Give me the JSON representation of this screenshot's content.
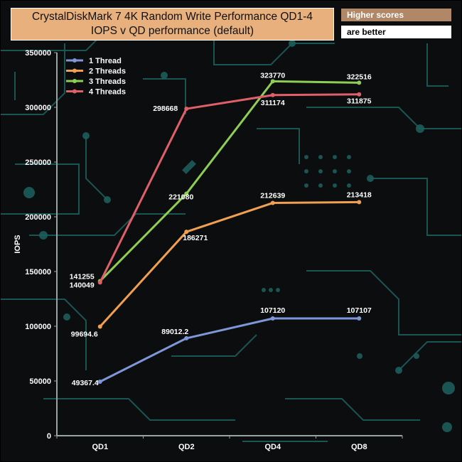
{
  "title_lines": [
    "CrystalDiskMark 7 4K Random Write Performance QD1-4",
    "IOPS v QD performance (default)"
  ],
  "badge": [
    "Higher scores",
    "are better"
  ],
  "colors": {
    "background": "#0b0d0e",
    "title_bg": "#e7b07c",
    "badge_bg": "#b08868",
    "circuit": "#1d5d5b"
  },
  "chart_data": {
    "type": "line",
    "title": "CrystalDiskMark 7 4K Random Write Performance QD1-4 IOPS v QD performance (default)",
    "xlabel": "",
    "ylabel": "IOPS",
    "categories": [
      "QD1",
      "QD2",
      "QD4",
      "QD8"
    ],
    "ylim": [
      0,
      350000
    ],
    "yticks": [
      "0",
      "50000",
      "100000",
      "150000",
      "200000",
      "250000",
      "300000",
      "350000"
    ],
    "grid": false,
    "legend_position": "top-left",
    "series": [
      {
        "name": "1 Thread",
        "color": "#7f97d8",
        "values": [
          49367.4,
          89012.2,
          107120,
          107107
        ],
        "labels": [
          "49367.4",
          "89012.2",
          "107120",
          "107107"
        ]
      },
      {
        "name": "2 Threads",
        "color": "#f0a050",
        "values": [
          99694.6,
          186271,
          212639,
          213418
        ],
        "labels": [
          "99694.6",
          "186271",
          "212639",
          "213418"
        ]
      },
      {
        "name": "3 Threads",
        "color": "#8fce55",
        "values": [
          141255,
          221080,
          323770,
          322516
        ],
        "labels": [
          "141255",
          "221080",
          "323770",
          "322516"
        ]
      },
      {
        "name": "4 Threads",
        "color": "#e0606a",
        "values": [
          140049,
          298668,
          311174,
          311875
        ],
        "labels": [
          "140049",
          "298668",
          "311174",
          "311875"
        ]
      }
    ]
  }
}
